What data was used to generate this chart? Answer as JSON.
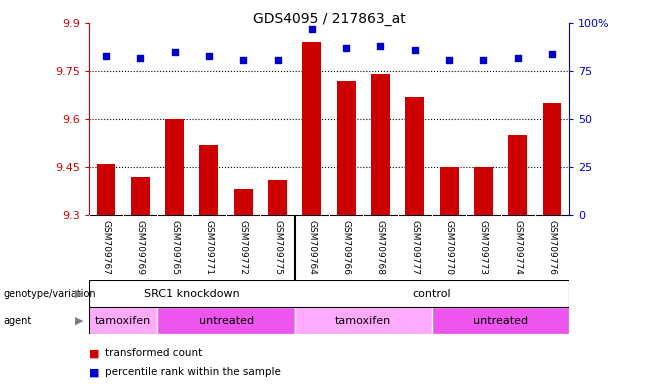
{
  "title": "GDS4095 / 217863_at",
  "samples": [
    "GSM709767",
    "GSM709769",
    "GSM709765",
    "GSM709771",
    "GSM709772",
    "GSM709775",
    "GSM709764",
    "GSM709766",
    "GSM709768",
    "GSM709777",
    "GSM709770",
    "GSM709773",
    "GSM709774",
    "GSM709776"
  ],
  "bar_values": [
    9.46,
    9.42,
    9.6,
    9.52,
    9.38,
    9.41,
    9.84,
    9.72,
    9.74,
    9.67,
    9.45,
    9.45,
    9.55,
    9.65
  ],
  "dot_values": [
    83,
    82,
    85,
    83,
    81,
    81,
    97,
    87,
    88,
    86,
    81,
    81,
    82,
    84
  ],
  "ylim_left": [
    9.3,
    9.9
  ],
  "ylim_right": [
    0,
    100
  ],
  "yticks_left": [
    9.3,
    9.45,
    9.6,
    9.75,
    9.9
  ],
  "yticks_right": [
    0,
    25,
    50,
    75,
    100
  ],
  "hlines": [
    9.45,
    9.6,
    9.75
  ],
  "bar_color": "#cc0000",
  "dot_color": "#0000cc",
  "bar_bottom": 9.3,
  "genotype_groups": [
    {
      "label": "SRC1 knockdown",
      "start": 0,
      "end": 6
    },
    {
      "label": "control",
      "start": 6,
      "end": 14
    }
  ],
  "agent_groups": [
    {
      "label": "tamoxifen",
      "start": 0,
      "end": 2,
      "color": "#ffaaff"
    },
    {
      "label": "untreated",
      "start": 2,
      "end": 6,
      "color": "#ee55ee"
    },
    {
      "label": "tamoxifen",
      "start": 6,
      "end": 10,
      "color": "#ffaaff"
    },
    {
      "label": "untreated",
      "start": 10,
      "end": 14,
      "color": "#ee55ee"
    }
  ],
  "legend_items": [
    {
      "color": "#cc0000",
      "label": "transformed count"
    },
    {
      "color": "#0000cc",
      "label": "percentile rank within the sample"
    }
  ],
  "left_label_color": "#cc0000",
  "right_label_color": "#0000cc",
  "bg_color": "#ffffff",
  "plot_bg_color": "#ffffff",
  "grid_color": "#000000",
  "tick_label_area_color": "#cccccc",
  "genotype_row_color": "#88ee88",
  "n_samples": 14,
  "n_src1": 6,
  "n_control": 8
}
